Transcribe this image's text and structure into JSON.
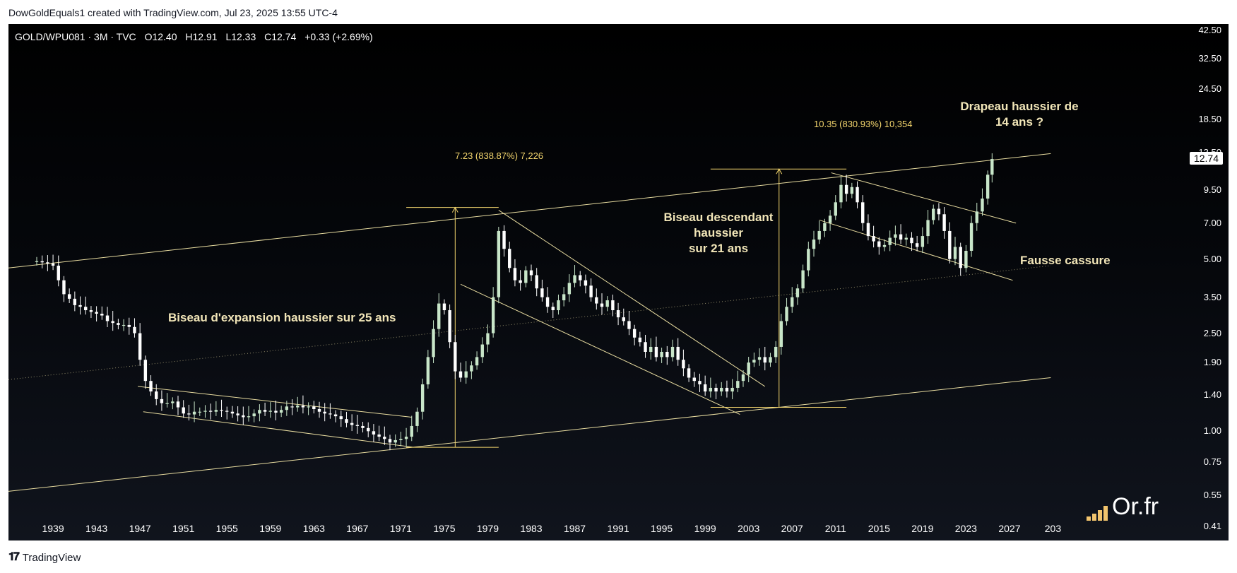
{
  "header": {
    "caption": "DowGoldEquals1 created with TradingView.com, Jul 23, 2025 13:55 UTC-4"
  },
  "symbol_info": {
    "symbol": "GOLD/WPU081 · 3M · TVC",
    "open": "O12.40",
    "high": "H12.91",
    "low": "L12.33",
    "close": "C12.74",
    "change": "+0.33 (+2.69%)"
  },
  "annotations": {
    "wedge_1": "Biseau d'expansion haussier sur 25 ans",
    "wedge_2_line1": "Biseau descendant haussier",
    "wedge_2_line2": "sur 21 ans",
    "flag_line1": "Drapeau haussier de",
    "flag_line2": "14 ans ?",
    "false_break": "Fausse cassure",
    "measure_1": "7.23 (838.87%) 7,226",
    "measure_2": "10.35 (830.93%) 10,354"
  },
  "price_badge": "12.74",
  "watermark": "Or.fr",
  "footer": {
    "brand": "TradingView",
    "logo_icon": "tradingview-logo-icon"
  },
  "colors": {
    "background": "#000000",
    "trendline": "#e8dca0",
    "measure": "#f5d76e",
    "candle_up": "#c8e6c9",
    "candle_down": "#ffffff"
  },
  "chart_data": {
    "type": "candlestick",
    "title": "GOLD/WPU081 · 3M · TVC",
    "y_scale": "log",
    "ylim": [
      0.36,
      45
    ],
    "y_ticks": [
      "42.50",
      "32.50",
      "24.50",
      "18.50",
      "13.50",
      "9.50",
      "7.00",
      "5.00",
      "3.50",
      "2.50",
      "1.90",
      "1.40",
      "1.00",
      "0.75",
      "0.55",
      "0.41"
    ],
    "x_ticks": [
      "1939",
      "1943",
      "1947",
      "1951",
      "1955",
      "1959",
      "1963",
      "1967",
      "1971",
      "1975",
      "1979",
      "1983",
      "1987",
      "1991",
      "1995",
      "1999",
      "2003",
      "2007",
      "2011",
      "2015",
      "2019",
      "2023",
      "2027",
      "203"
    ],
    "xlim": [
      1934.9,
      2031.1
    ],
    "last_price": 12.74,
    "series": [
      {
        "close": [
          [
            1937.5,
            4.9
          ],
          [
            1938,
            4.85
          ],
          [
            1938.5,
            4.8
          ],
          [
            1939,
            4.7
          ],
          [
            1939.5,
            4.1
          ],
          [
            1940,
            3.6
          ],
          [
            1940.5,
            3.45
          ],
          [
            1941,
            3.25
          ],
          [
            1941.5,
            3.2
          ],
          [
            1942,
            3.1
          ],
          [
            1942.5,
            3.05
          ],
          [
            1943,
            3.0
          ],
          [
            1943.5,
            2.95
          ],
          [
            1944,
            2.8
          ],
          [
            1944.5,
            2.75
          ],
          [
            1945,
            2.7
          ],
          [
            1945.5,
            2.7
          ],
          [
            1946,
            2.65
          ],
          [
            1946.5,
            2.5
          ],
          [
            1947,
            1.95
          ],
          [
            1947.5,
            1.6
          ],
          [
            1948,
            1.45
          ],
          [
            1948.5,
            1.35
          ],
          [
            1949,
            1.3
          ],
          [
            1949.5,
            1.3
          ],
          [
            1950,
            1.32
          ],
          [
            1950.5,
            1.25
          ],
          [
            1951,
            1.18
          ],
          [
            1951.5,
            1.17
          ],
          [
            1952,
            1.2
          ],
          [
            1952.5,
            1.2
          ],
          [
            1953,
            1.21
          ],
          [
            1953.5,
            1.2
          ],
          [
            1954,
            1.22
          ],
          [
            1954.5,
            1.21
          ],
          [
            1955,
            1.2
          ],
          [
            1955.5,
            1.18
          ],
          [
            1956,
            1.16
          ],
          [
            1956.5,
            1.14
          ],
          [
            1957,
            1.15
          ],
          [
            1957.5,
            1.18
          ],
          [
            1958,
            1.22
          ],
          [
            1958.5,
            1.2
          ],
          [
            1959,
            1.21
          ],
          [
            1959.5,
            1.19
          ],
          [
            1960,
            1.22
          ],
          [
            1960.5,
            1.26
          ],
          [
            1961,
            1.25
          ],
          [
            1961.5,
            1.27
          ],
          [
            1962,
            1.25
          ],
          [
            1962.5,
            1.26
          ],
          [
            1963,
            1.23
          ],
          [
            1963.5,
            1.2
          ],
          [
            1964,
            1.18
          ],
          [
            1964.5,
            1.17
          ],
          [
            1965,
            1.15
          ],
          [
            1965.5,
            1.12
          ],
          [
            1966,
            1.08
          ],
          [
            1966.5,
            1.06
          ],
          [
            1967,
            1.05
          ],
          [
            1967.5,
            1.03
          ],
          [
            1968,
            1.0
          ],
          [
            1968.5,
            0.97
          ],
          [
            1969,
            0.95
          ],
          [
            1969.5,
            0.93
          ],
          [
            1970,
            0.9
          ],
          [
            1970.5,
            0.92
          ],
          [
            1971,
            0.93
          ],
          [
            1971.5,
            0.95
          ],
          [
            1972,
            1.05
          ],
          [
            1972.5,
            1.2
          ],
          [
            1973,
            1.55
          ],
          [
            1973.5,
            2.0
          ],
          [
            1974,
            2.6
          ],
          [
            1974.5,
            3.3
          ],
          [
            1975,
            3.1
          ],
          [
            1975.5,
            2.3
          ],
          [
            1976,
            1.75
          ],
          [
            1976.5,
            1.65
          ],
          [
            1977,
            1.75
          ],
          [
            1977.5,
            1.85
          ],
          [
            1978,
            2.0
          ],
          [
            1978.5,
            2.25
          ],
          [
            1979,
            2.5
          ],
          [
            1979.5,
            3.5
          ],
          [
            1980,
            6.5
          ],
          [
            1980.5,
            5.5
          ],
          [
            1981,
            4.6
          ],
          [
            1981.5,
            4.1
          ],
          [
            1982,
            4.0
          ],
          [
            1982.5,
            4.5
          ],
          [
            1983,
            4.3
          ],
          [
            1983.5,
            3.8
          ],
          [
            1984,
            3.5
          ],
          [
            1984.5,
            3.2
          ],
          [
            1985,
            3.1
          ],
          [
            1985.5,
            3.4
          ],
          [
            1986,
            3.6
          ],
          [
            1986.5,
            4.0
          ],
          [
            1987,
            4.3
          ],
          [
            1987.5,
            4.1
          ],
          [
            1988,
            3.9
          ],
          [
            1988.5,
            3.5
          ],
          [
            1989,
            3.3
          ],
          [
            1989.5,
            3.2
          ],
          [
            1990,
            3.4
          ],
          [
            1990.5,
            3.1
          ],
          [
            1991,
            2.9
          ],
          [
            1991.5,
            2.8
          ],
          [
            1992,
            2.6
          ],
          [
            1992.5,
            2.4
          ],
          [
            1993,
            2.3
          ],
          [
            1993.5,
            2.1
          ],
          [
            1994,
            2.2
          ],
          [
            1994.5,
            2.0
          ],
          [
            1995,
            2.1
          ],
          [
            1995.5,
            2.0
          ],
          [
            1996,
            2.2
          ],
          [
            1996.5,
            1.95
          ],
          [
            1997,
            1.8
          ],
          [
            1997.5,
            1.65
          ],
          [
            1998,
            1.6
          ],
          [
            1998.5,
            1.55
          ],
          [
            1999,
            1.45
          ],
          [
            1999.5,
            1.5
          ],
          [
            2000,
            1.45
          ],
          [
            2000.5,
            1.5
          ],
          [
            2001,
            1.45
          ],
          [
            2001.5,
            1.5
          ],
          [
            2002,
            1.6
          ],
          [
            2002.5,
            1.7
          ],
          [
            2003,
            1.9
          ],
          [
            2003.5,
            1.95
          ],
          [
            2004,
            2.0
          ],
          [
            2004.5,
            1.9
          ],
          [
            2005,
            2.0
          ],
          [
            2005.5,
            2.2
          ],
          [
            2006,
            2.8
          ],
          [
            2006.5,
            3.2
          ],
          [
            2007,
            3.5
          ],
          [
            2007.5,
            3.8
          ],
          [
            2008,
            4.5
          ],
          [
            2008.5,
            5.5
          ],
          [
            2009,
            6.0
          ],
          [
            2009.5,
            6.5
          ],
          [
            2010,
            7.0
          ],
          [
            2010.5,
            7.5
          ],
          [
            2011,
            8.5
          ],
          [
            2011.5,
            10.0
          ],
          [
            2012,
            9.2
          ],
          [
            2012.5,
            9.8
          ],
          [
            2013,
            8.5
          ],
          [
            2013.5,
            7.0
          ],
          [
            2014,
            6.2
          ],
          [
            2014.5,
            5.9
          ],
          [
            2015,
            5.6
          ],
          [
            2015.5,
            5.7
          ],
          [
            2016,
            6.1
          ],
          [
            2016.5,
            6.3
          ],
          [
            2017,
            6.0
          ],
          [
            2017.5,
            6.1
          ],
          [
            2018,
            5.8
          ],
          [
            2018.5,
            5.6
          ],
          [
            2019,
            6.2
          ],
          [
            2019.5,
            7.2
          ],
          [
            2020,
            8.0
          ],
          [
            2020.5,
            7.6
          ],
          [
            2021,
            6.5
          ],
          [
            2021.5,
            5.0
          ],
          [
            2022,
            5.6
          ],
          [
            2022.5,
            4.6
          ],
          [
            2023,
            5.4
          ],
          [
            2023.5,
            7.0
          ],
          [
            2024,
            7.8
          ],
          [
            2024.5,
            8.8
          ],
          [
            2025,
            11.0
          ],
          [
            2025.4,
            12.74
          ]
        ]
      }
    ],
    "annotation_texts": [
      "Biseau d'expansion haussier sur 25 ans",
      "Biseau descendant haussier sur 21 ans",
      "Drapeau haussier de 14 ans ?",
      "Fausse cassure"
    ]
  }
}
